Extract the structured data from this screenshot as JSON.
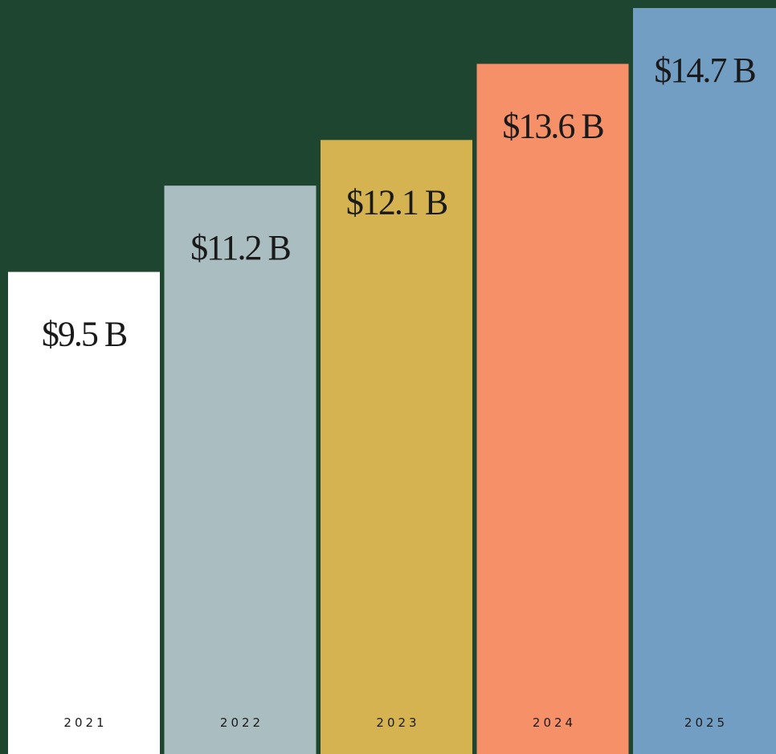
{
  "chart_data": {
    "type": "bar",
    "categories": [
      "2021",
      "2022",
      "2023",
      "2024",
      "2025"
    ],
    "values": [
      9.5,
      11.2,
      12.1,
      13.6,
      14.7
    ],
    "value_labels": [
      "$9.5 B",
      "$11.2 B",
      "$12.1 B",
      "$13.6 B",
      "$14.7 B"
    ],
    "colors": [
      "#ffffff",
      "#aabdc0",
      "#d4b350",
      "#f59068",
      "#739ec4"
    ],
    "background": "#1d4530"
  }
}
